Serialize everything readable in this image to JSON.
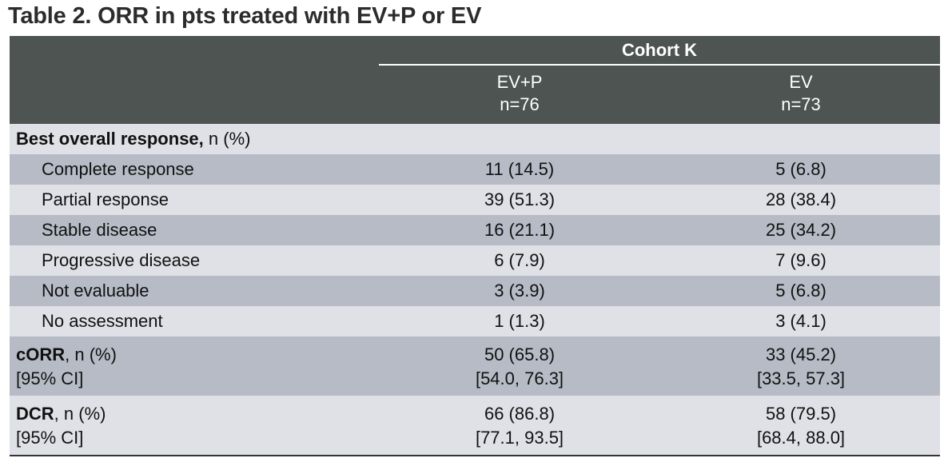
{
  "title": "Table 2. ORR in pts treated with EV+P or EV",
  "header": {
    "cohort": "Cohort K",
    "col1_line1": "EV+P",
    "col1_line2": "n=76",
    "col2_line1": "EV",
    "col2_line2": "n=73"
  },
  "section": {
    "label_bold": "Best overall response,",
    "label_rest": " n (%)"
  },
  "rows": [
    {
      "label": "Complete response",
      "c1": "11 (14.5)",
      "c2": "5 (6.8)"
    },
    {
      "label": "Partial response",
      "c1": "39 (51.3)",
      "c2": "28 (38.4)"
    },
    {
      "label": "Stable disease",
      "c1": "16 (21.1)",
      "c2": "25 (34.2)"
    },
    {
      "label": "Progressive disease",
      "c1": "6 (7.9)",
      "c2": "7 (9.6)"
    },
    {
      "label": "Not evaluable",
      "c1": "3 (3.9)",
      "c2": "5 (6.8)"
    },
    {
      "label": "No assessment",
      "c1": "1 (1.3)",
      "c2": "3 (4.1)"
    }
  ],
  "corr": {
    "label_bold": "cORR",
    "label_rest": ", n (%)",
    "ci_label": "[95% CI]",
    "c1": "50 (65.8)",
    "c1_ci": "[54.0, 76.3]",
    "c2": "33 (45.2)",
    "c2_ci": "[33.5, 57.3]"
  },
  "dcr": {
    "label_bold": "DCR",
    "label_rest": ", n (%)",
    "ci_label": "[95% CI]",
    "c1": "66 (86.8)",
    "c1_ci": "[77.1, 93.5]",
    "c2": "58 (79.5)",
    "c2_ci": "[68.4, 88.0]"
  },
  "colors": {
    "header_bg": "#4d5452",
    "row_light": "#dfe1e6",
    "row_dark": "#b6bbc6"
  }
}
